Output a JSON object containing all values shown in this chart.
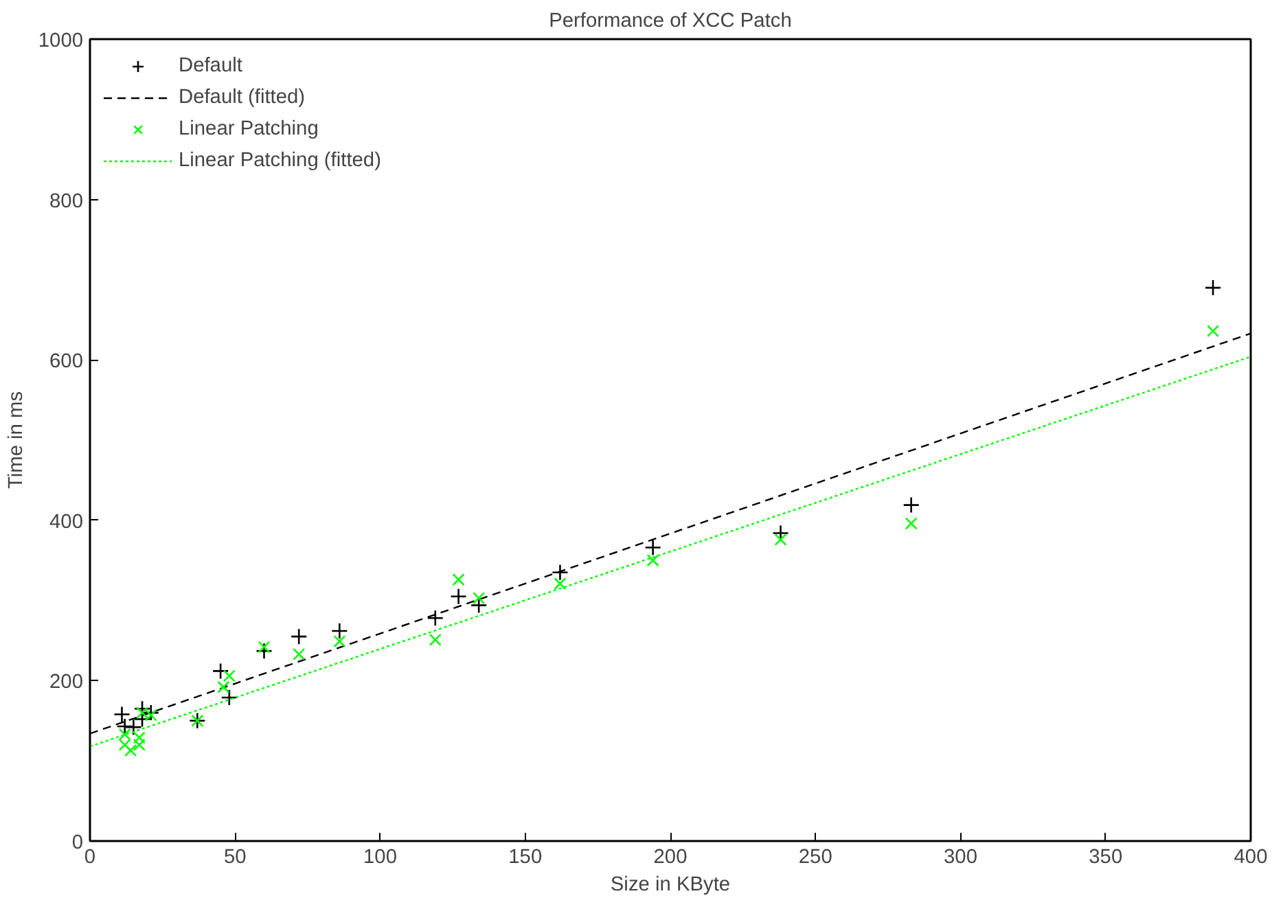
{
  "chart_data": {
    "type": "scatter",
    "title": "Performance of XCC Patch",
    "xlabel": "Size in KByte",
    "ylabel": "Time in ms",
    "xlim": [
      0,
      400
    ],
    "xticks": [
      0,
      50,
      100,
      150,
      200,
      250,
      300,
      350,
      400
    ],
    "ylim": [
      0,
      1000
    ],
    "yticks": [
      0,
      200,
      400,
      600,
      800,
      1000
    ],
    "grid": false,
    "legend": "top left",
    "series": [
      {
        "name": "Default",
        "marker": "cross",
        "color": "#000000",
        "x": [
          11,
          12,
          15,
          18,
          18,
          21,
          37,
          45,
          48,
          60,
          72,
          86,
          119,
          127,
          134,
          162,
          194,
          238,
          283,
          387
        ],
        "values": [
          158,
          143,
          142,
          165,
          152,
          160,
          150,
          212,
          179,
          237,
          255,
          262,
          278,
          305,
          294,
          335,
          366,
          384,
          419,
          690
        ]
      },
      {
        "name": "Default (fitted)",
        "type": "line",
        "line_style": "dashed",
        "color": "#000000",
        "x": [
          0,
          400
        ],
        "values": [
          134,
          633
        ]
      },
      {
        "name": "Linear Patching",
        "marker": "x",
        "color": "#00ff00",
        "x": [
          12,
          12,
          14,
          17,
          17,
          18,
          21,
          37,
          46,
          48,
          60,
          72,
          86,
          119,
          127,
          134,
          162,
          194,
          238,
          283,
          387
        ],
        "values": [
          133,
          120,
          113,
          129,
          120,
          160,
          157,
          150,
          192,
          206,
          242,
          233,
          249,
          251,
          326,
          303,
          321,
          350,
          376,
          396,
          636
        ]
      },
      {
        "name": "Linear Patching (fitted)",
        "type": "line",
        "line_style": "dotted",
        "color": "#00ff00",
        "x": [
          0,
          400
        ],
        "values": [
          118,
          604
        ]
      }
    ]
  }
}
